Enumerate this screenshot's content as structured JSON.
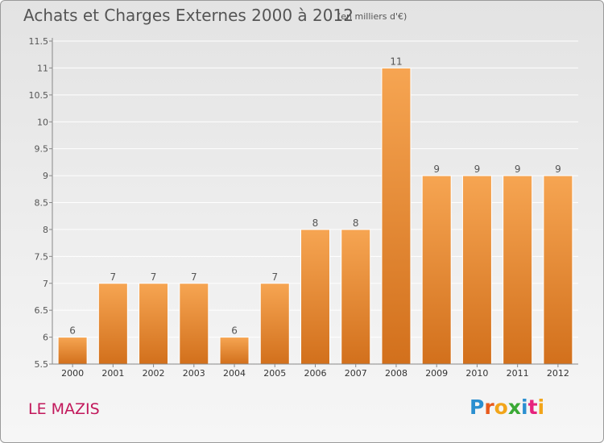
{
  "header": {
    "title": "Achats et Charges Externes 2000 à 2012",
    "subtitle": "(en milliers d'€)"
  },
  "footer": {
    "commune": "LE MAZIS",
    "logo_letters": [
      "P",
      "r",
      "o",
      "x",
      "i",
      "t",
      "i"
    ],
    "logo_colors": [
      "#2b8fd0",
      "#e85a1c",
      "#f2a51a",
      "#3aa935",
      "#2b8fd0",
      "#e6237d",
      "#f2a51a"
    ]
  },
  "colors": {
    "bar_top": "#f6a552",
    "bar_bottom": "#d2701c",
    "bar_edge": "#ffffff",
    "grid": "#ffffff",
    "axis": "#888888",
    "text": "#555555"
  },
  "chart_data": {
    "type": "bar",
    "categories": [
      "2000",
      "2001",
      "2002",
      "2003",
      "2004",
      "2005",
      "2006",
      "2007",
      "2008",
      "2009",
      "2010",
      "2011",
      "2012"
    ],
    "values": [
      6,
      7,
      7,
      7,
      6,
      7,
      8,
      8,
      11,
      9,
      9,
      9,
      9
    ],
    "data_labels": [
      "6",
      "7",
      "7",
      "7",
      "6",
      "7",
      "8",
      "8",
      "11",
      "9",
      "9",
      "9",
      "9"
    ],
    "yticks": [
      "5.5",
      "6",
      "6.5",
      "7",
      "7.5",
      "8",
      "8.5",
      "9",
      "9.5",
      "10",
      "10.5",
      "11",
      "11.5"
    ],
    "ylim": [
      5.5,
      11.5
    ],
    "grid": true,
    "xlabel": "",
    "ylabel": ""
  }
}
